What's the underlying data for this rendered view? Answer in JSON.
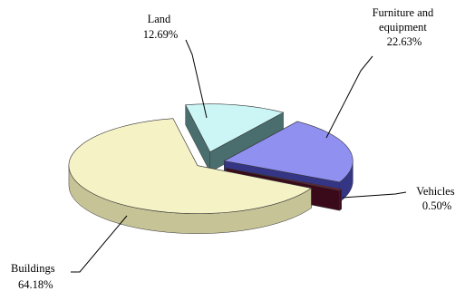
{
  "chart_data": {
    "type": "pie",
    "title": "",
    "grid": false,
    "legend": "none",
    "categories": [
      "Land",
      "Furniture and equipment",
      "Vehicles",
      "Buildings"
    ],
    "values": [
      12.69,
      22.63,
      0.5,
      64.18
    ],
    "slices": [
      {
        "name": "Land",
        "label_lines": [
          "Land"
        ],
        "value_label": "12.69%",
        "color": "#ccf6f6",
        "side_color": "#4a6e6e"
      },
      {
        "name": "Furniture and equipment",
        "label_lines": [
          "Furniture and",
          "equipment"
        ],
        "value_label": "22.63%",
        "color": "#9090f0",
        "side_color": "#353585"
      },
      {
        "name": "Vehicles",
        "label_lines": [
          "Vehicles"
        ],
        "value_label": "0.50%",
        "color": "#7a1e3a",
        "side_color": "#3a0a1a"
      },
      {
        "name": "Buildings",
        "label_lines": [
          "Buildings"
        ],
        "value_label": "64.18%",
        "color": "#f5f2c6",
        "side_color": "#c6c397"
      }
    ]
  }
}
